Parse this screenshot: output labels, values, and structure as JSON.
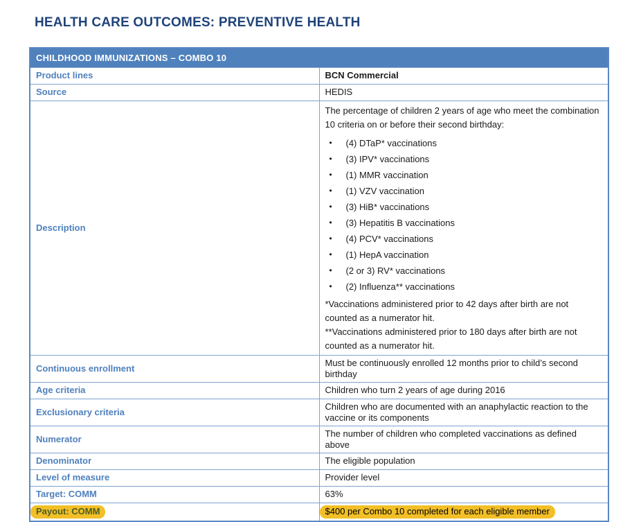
{
  "page": {
    "title": "HEALTH CARE OUTCOMES: PREVENTIVE HEALTH"
  },
  "table": {
    "header": "CHILDHOOD IMMUNIZATIONS – COMBO 10",
    "rows_top": [
      {
        "label": "Product lines",
        "value": "BCN Commercial"
      },
      {
        "label": "Source",
        "value": "HEDIS"
      }
    ],
    "description": {
      "label": "Description",
      "intro": "The percentage of children 2 years of age who meet the combination 10 criteria on or before their second birthday:",
      "bullet_char": "•",
      "bullets": [
        "(4) DTaP* vaccinations",
        "(3) IPV* vaccinations",
        "(1) MMR vaccination",
        "(1) VZV vaccination",
        "(3) HiB* vaccinations",
        "(3) Hepatitis B vaccinations",
        "(4) PCV* vaccinations",
        "(1) HepA vaccination",
        "(2 or 3) RV* vaccinations",
        "(2) Influenza** vaccinations"
      ],
      "footnotes": [
        "*Vaccinations administered prior to 42 days after birth are not counted as a numerator hit.",
        "**Vaccinations administered prior to 180 days after birth are not counted as a numerator hit."
      ]
    },
    "rows_bottom": [
      {
        "label": "Continuous enrollment",
        "value": "Must be continuously enrolled 12 months prior to child’s second birthday"
      },
      {
        "label": "Age criteria",
        "value": "Children who turn 2 years of age during 2016"
      },
      {
        "label": "Exclusionary criteria",
        "value": "Children who are documented with an anaphylactic reaction to the vaccine or its components"
      },
      {
        "label": "Numerator",
        "value": "The number of children who completed vaccinations as defined above"
      },
      {
        "label": "Denominator",
        "value": "The eligible population"
      },
      {
        "label": "Level of measure",
        "value": "Provider level"
      },
      {
        "label": "Target: COMM",
        "value": "63%"
      },
      {
        "label": "Payout: COMM",
        "value": "$400 per Combo 10 completed for each eligible member"
      }
    ]
  },
  "colors": {
    "title_navy": "#1F4379",
    "accent_blue": "#4F81BD",
    "border_blue": "#7BA3D0",
    "header_text": "#FFFFFF",
    "highlight_gold": "#F2BF27",
    "highlight_label_text": "#4A5D23"
  }
}
